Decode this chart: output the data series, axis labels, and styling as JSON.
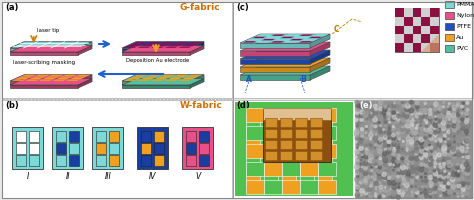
{
  "bg_color": "#e8e8e8",
  "cyan": "#7DD8D8",
  "pink": "#E8508A",
  "dark_blue": "#1A3EA0",
  "orange": "#F0A020",
  "green": "#50C050",
  "teal": "#50C0A0",
  "maroon": "#8B1050",
  "label_a": "(a)",
  "label_b": "(b)",
  "label_c": "(c)",
  "label_d": "(d)",
  "label_e": "(e)",
  "title_g": "G-fabric",
  "title_w": "W-fabric",
  "text_laser": "laser tip",
  "text_masking": "laser-scribing masking",
  "text_deposition": "Deposition Au electrode",
  "roman_labels": [
    "I",
    "II",
    "III",
    "IV",
    "V"
  ],
  "legend_labels": [
    "PMMA",
    "Nylon",
    "PTFE",
    "Au",
    "PVC"
  ],
  "legend_colors": [
    "#7DD8D8",
    "#E8508A",
    "#2050C0",
    "#F0A020",
    "#50C0A0"
  ],
  "figsize": [
    4.74,
    2.0
  ],
  "dpi": 100
}
